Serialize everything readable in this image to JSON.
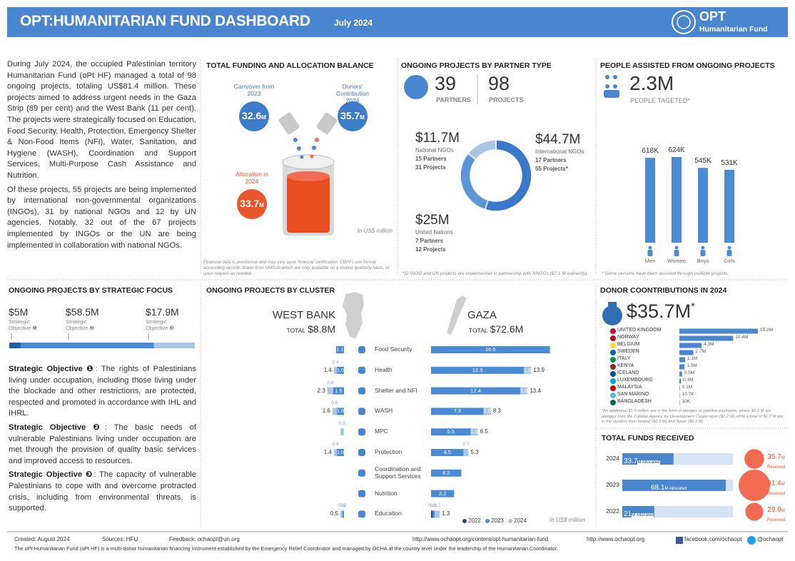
{
  "header": {
    "title": "OPT:HUMANITARIAN FUND DASHBOARD",
    "date": "July 2024",
    "logo_title": "OPT",
    "logo_subtitle": "Humanitarian Fund"
  },
  "intro": [
    "During July 2024, the occupied Palestinian territory Humanitarian Fund (oPt HF) managed a total of 98 ongoing projects, totaling US$81.4 million. These projects aimed to address urgent needs in the Gaza Strip (89 per cent) and the West Bank (11 per cent). The projects were strategically focused on Education, Food Security, Health, Protection, Emergency Shelter & Non-Food Items (NFI), Water, Sanitation, and Hygiene (WASH), Coordination and Support Services, Multi-Purpose Cash Assistance and Nutrition.",
    "Of these projects, 55 projects are being implemented by international non-governmental organizations (INGOs), 31 by national NGOs and 12 by UN agencies. Notably, 32 out of the 67 projects implemented by INGOs or the UN are being implemented in collaboration with national NGOs."
  ],
  "total_funding": {
    "title": "TOTAL FUNDING AND ALLOCATION BALANCE",
    "carryover": {
      "label": "Carryover from 2023",
      "amount": 32.6
    },
    "donors": {
      "label": "Donors' Contribution 2024",
      "amount": 35.7
    },
    "allocation": {
      "label": "Allocation in 2024",
      "amount": 33.7
    },
    "unit": "M",
    "note": "In US$ million",
    "footnote": "Financial data is provisional and may vary upon financial certification. CBPFs use formal accounting records drawn from UMOJA which are only available on a routine quarterly basis, or upon request as needed."
  },
  "partners": {
    "title": "ONGOING PROJECTS BY PARTNER TYPE",
    "partners_count": "39",
    "partners_label": "PARTNERS",
    "projects_count": "98",
    "projects_label": "PROJECTS",
    "types": [
      {
        "name": "International NGOs",
        "amount": 44.7,
        "label": "$44.7M",
        "partners": "17 Partners",
        "projects": "55 Projects*",
        "color": "#3a78c9"
      },
      {
        "name": "United Nations",
        "amount": 25,
        "label": "$25M",
        "partners": "7 Partners",
        "projects": "12 Projects",
        "color": "#5b97d8"
      },
      {
        "name": "National NGOs",
        "amount": 11.7,
        "label": "$11.7M",
        "partners": "15 Partners",
        "projects": "31 Projects",
        "color": "#a9c6e8"
      }
    ],
    "footnote": "*32 INGO and UN projects are implemented in partnership with NNGOs ($7.1 M indirectly)."
  },
  "people": {
    "title": "PEOPLE ASSISTED FROM ONGOING PROJECTS",
    "total": "2.3M",
    "total_label": "PEOPLE TAGETED*",
    "color": "#4a8bd3",
    "groups": [
      {
        "name": "Men",
        "value": 618,
        "label": "618K"
      },
      {
        "name": "Women",
        "value": 624,
        "label": "624K"
      },
      {
        "name": "Boys",
        "value": 545,
        "label": "545K"
      },
      {
        "name": "Girls",
        "value": 531,
        "label": "531K"
      }
    ],
    "footnote": "* Some persons have been assisted through multiple projects."
  },
  "strategic_focus": {
    "title": "ONGOING PROJECTS BY STRATEGIC FOCUS",
    "objectives": [
      {
        "amount": 5,
        "label": "$5M",
        "name": "Strategic Objective ❶",
        "color": "#1f5fa8"
      },
      {
        "amount": 58.5,
        "label": "$58.5M",
        "name": "Strategic Objective ❷",
        "color": "#4a8bd3"
      },
      {
        "amount": 17.9,
        "label": "$17.9M",
        "name": "Strategic Objective ❸",
        "color": "#a9c6e8"
      }
    ],
    "paragraphs": [
      {
        "lead": "Strategic Objective ❶",
        "text": ": The rights of Palestinians living under occupation, including those living under the blockade and other restrictions, are protected, respected and promoted in accordance with IHL and IHRL."
      },
      {
        "lead": "Strategic Objective ❷",
        "text": ":  The basic needs of vulnerable Palestinians living under occupation are met through the provision of quality basic services and improved access to resources."
      },
      {
        "lead": "Strategic Objective ❸",
        "text": ":  The capacity of vulnerable Palestinians to cope with and overcome protracted crisis, including from environmental threats, is supported."
      }
    ]
  },
  "cluster": {
    "title": "ONGOING PROJECTS BY CLUSTER",
    "west_bank": {
      "name": "WEST BANK",
      "total_label": "TOTAL",
      "total": "$8.8M"
    },
    "gaza": {
      "name": "GAZA",
      "total_label": "TOTAL",
      "total": "$72.6M"
    },
    "years": [
      {
        "name": "2022",
        "color": "#1f4e8c"
      },
      {
        "name": "2023",
        "color": "#4a8bd3"
      },
      {
        "name": "2024",
        "color": "#a9c6e8"
      }
    ],
    "note": "In US$ million",
    "rows": [
      {
        "name": "Food Security",
        "west_bank": [
          null,
          "1.1",
          null
        ],
        "gaza": [
          null,
          "16.5",
          null
        ]
      },
      {
        "name": "Health",
        "west_bank": [
          null,
          "1.0",
          "0.4"
        ],
        "west_bank_total": "1.4",
        "gaza": [
          null,
          "12.9",
          "1.0"
        ],
        "gaza_total": "13.9"
      },
      {
        "name": "Shelter and NFI",
        "west_bank": [
          null,
          "1.5",
          "0.8"
        ],
        "west_bank_total": "2.3",
        "gaza": [
          null,
          "12.4",
          "1.0"
        ],
        "gaza_total": "13.4"
      },
      {
        "name": "WASH",
        "west_bank": [
          null,
          "1.0",
          "0.6"
        ],
        "west_bank_total": "1.6",
        "gaza": [
          null,
          "7.3",
          "1.0"
        ],
        "gaza_total": "8.3"
      },
      {
        "name": "MPC",
        "west_bank": [
          null,
          null,
          "0.5"
        ],
        "gaza": [
          null,
          "5.5",
          "1.0"
        ],
        "gaza_total": "6.5"
      },
      {
        "name": "Protection",
        "west_bank": [
          null,
          "1.0",
          "0.4"
        ],
        "west_bank_total": "1.4",
        "gaza": [
          null,
          "4.5",
          "0.7"
        ],
        "gaza_total": "5.3"
      },
      {
        "name": "Coordination and Support Services",
        "gaza": [
          null,
          "4.2",
          null
        ]
      },
      {
        "name": "Nutrition",
        "gaza": [
          null,
          "3.2",
          null
        ]
      },
      {
        "name": "Education",
        "west_bank": [
          null,
          "0.2",
          "0.3"
        ],
        "west_bank_total": "0.5",
        "gaza": [
          "0.2",
          "0.3",
          "0.7"
        ],
        "gaza_total": "1.3"
      }
    ]
  },
  "donors": {
    "title": "DONOR COONTRIBUTIONS IN 2024",
    "total": "$35.7M",
    "total_mark": "*",
    "color": "#4a86d0",
    "list": [
      {
        "name": "UNITED KINGDOM",
        "value": 15.2,
        "label": "15.2M",
        "flag": "#c8102e"
      },
      {
        "name": "NORWAY",
        "value": 10.4,
        "label": "10.4M",
        "flag": "#ba0c2f"
      },
      {
        "name": "BELGIUM",
        "value": 4.3,
        "label": "4.3M",
        "flag": "#fdda24"
      },
      {
        "name": "SWEDEN",
        "value": 2.7,
        "label": "2.7M",
        "flag": "#006aa7"
      },
      {
        "name": "ITALY",
        "value": 1.1,
        "label": "1.1M",
        "flag": "#009246"
      },
      {
        "name": "KENYA",
        "value": 1.0,
        "label": "1.0M",
        "flag": "#922529"
      },
      {
        "name": "ICELAND",
        "value": 0.5,
        "label": "0.5M",
        "flag": "#02529c"
      },
      {
        "name": "LUXEMBOURG",
        "value": 0.3,
        "label": "0.3M",
        "flag": "#00a1de"
      },
      {
        "name": "MALAYSIA",
        "value": 0.1,
        "label": "0.1M",
        "flag": "#cc0001"
      },
      {
        "name": "SAN MARINO",
        "value": 0.0107,
        "label": "10.7K",
        "flag": "#5eb6e4"
      },
      {
        "name": "BANGLADESH",
        "value": 0.01,
        "label": "10K",
        "flag": "#006a4e"
      }
    ],
    "footnote": "*An additional $1.5 million are in the form of pledges or pipeline payments, where $0.2 M are pledged from the Catalan Agency for Development Cooperation ($0.2 M) while a total of $1.2 M are in the pipeline from Ireland ($0.3 M) and Spain ($0.9 M)."
  },
  "total_funds": {
    "title": "TOTAL FUNDS RECEIVED",
    "allocated_unit": "M Allocated",
    "received_unit": "M",
    "received_label": "Received",
    "allocated_color": "#4a86d0",
    "received_color": "#f26a4f",
    "rows": [
      {
        "year": "2024",
        "allocated": 33.7,
        "received": 35.7
      },
      {
        "year": "2023",
        "allocated": 68.1,
        "received": 91.4
      },
      {
        "year": "2022",
        "allocated": 21,
        "received": 29.9
      }
    ]
  },
  "footer": {
    "created": "Created: August 2024",
    "sources": "Sources:  HFU",
    "feedback": "Feedback: ochaopt@un.org",
    "url": "http://www.ochaopt.org/content/opt-humanitarian-fund",
    "site": "http://www.ochaopt.org",
    "facebook": "facebook.com/ochaopt",
    "twitter": "@ochaopt",
    "statement": "The oPt Humanitarian Fund (oPt HF) is a multi-donor humanitarian financing instrument established by the Emergency Relief Coordinator and managed by OCHA at the country level under the leadership of the Humanitarian Coordinator."
  }
}
